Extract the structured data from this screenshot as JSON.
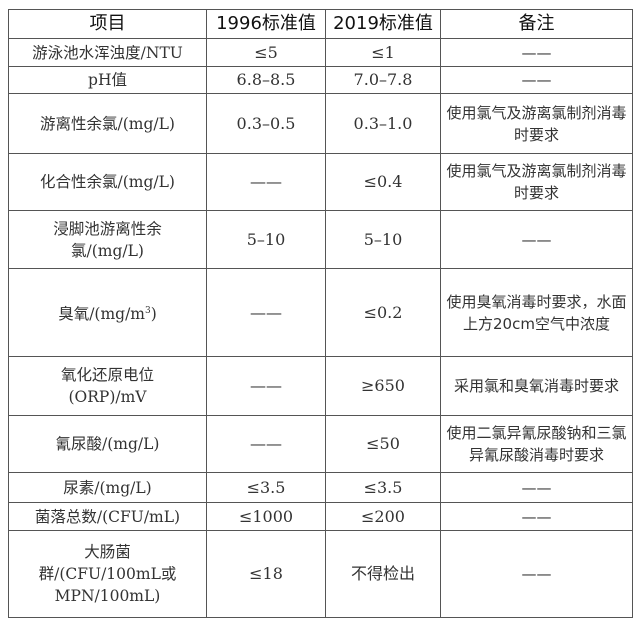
{
  "headers": [
    "项目",
    "1996标准值",
    "2019标准值",
    "备注"
  ],
  "rows": [
    {
      "item": "游泳池水浑浊度/NTU",
      "v1996": "≤5",
      "v2019": "≤1",
      "note": "——"
    },
    {
      "item": "pH值",
      "v1996": "6.8–8.5",
      "v2019": "7.0–7.8",
      "note": "——"
    },
    {
      "item": "游离性余氯/(mg/L)",
      "v1996": "0.3–0.5",
      "v2019": "0.3–1.0",
      "note": "使用氯气及游离氯制剂消毒时要求"
    },
    {
      "item": "化合性余氯/(mg/L)",
      "v1996": "——",
      "v2019": "≤0.4",
      "note": "使用氯气及游离氯制剂消毒时要求"
    },
    {
      "item": "浸脚池游离性余氯/(mg/L)",
      "v1996": "5–10",
      "v2019": "5–10",
      "note": "——"
    },
    {
      "item": "臭氧/(mg/m",
      "item_sup": "3",
      "item_end": ")",
      "v1996": "——",
      "v2019": "≤0.2",
      "note": "使用臭氧消毒时要求，水面上方20cm空气中浓度"
    },
    {
      "item": "氧化还原电位(ORP)/mV",
      "v1996": "——",
      "v2019": "≥650",
      "note": "采用氯和臭氧消毒时要求"
    },
    {
      "item": "氰尿酸/(mg/L)",
      "v1996": "——",
      "v2019": "≤50",
      "note": "使用二氯异氰尿酸钠和三氯异氰尿酸消毒时要求"
    },
    {
      "item": "尿素/(mg/L)",
      "v1996": "≤3.5",
      "v2019": "≤3.5",
      "note": "——"
    },
    {
      "item": "菌落总数/(CFU/mL)",
      "v1996": "≤1000",
      "v2019": "≤200",
      "note": "——"
    },
    {
      "item": "大肠菌群/(CFU/100mL或MPN/100mL)",
      "v1996": "≤18",
      "v2019": "不得检出",
      "note": "——"
    }
  ]
}
